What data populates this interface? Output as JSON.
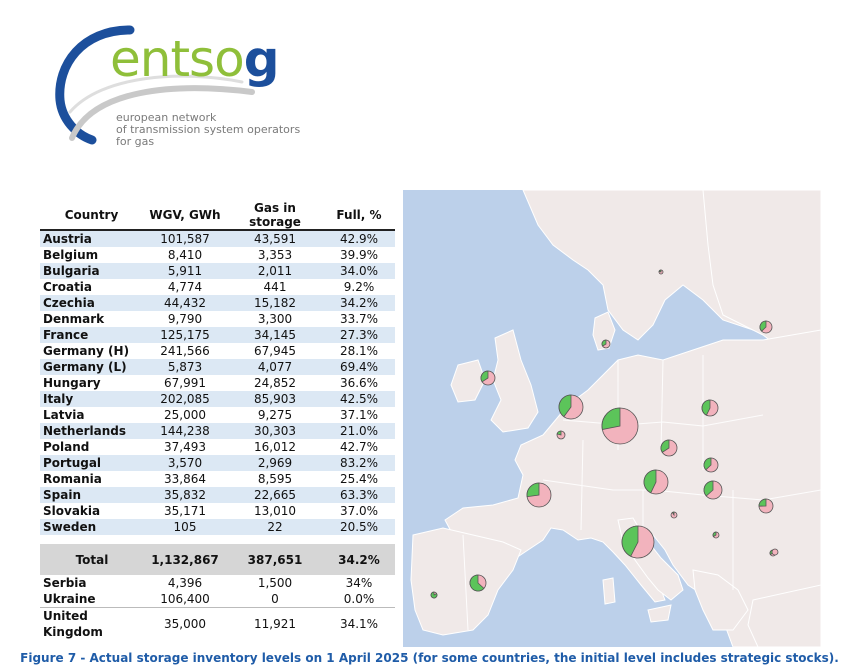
{
  "logo": {
    "brand": "entso",
    "brand_g": "g",
    "tagline": [
      "european network",
      "of transmission system operators",
      "for gas"
    ]
  },
  "table": {
    "headers": [
      "Country",
      "WGV, GWh",
      "Gas in storage",
      "Full, %"
    ],
    "rows": [
      [
        "Austria",
        "101,587",
        "43,591",
        "42.9%"
      ],
      [
        "Belgium",
        "8,410",
        "3,353",
        "39.9%"
      ],
      [
        "Bulgaria",
        "5,911",
        "2,011",
        "34.0%"
      ],
      [
        "Croatia",
        "4,774",
        "441",
        "9.2%"
      ],
      [
        "Czechia",
        "44,432",
        "15,182",
        "34.2%"
      ],
      [
        "Denmark",
        "9,790",
        "3,300",
        "33.7%"
      ],
      [
        "France",
        "125,175",
        "34,145",
        "27.3%"
      ],
      [
        "Germany (H)",
        "241,566",
        "67,945",
        "28.1%"
      ],
      [
        "Germany (L)",
        "5,873",
        "4,077",
        "69.4%"
      ],
      [
        "Hungary",
        "67,991",
        "24,852",
        "36.6%"
      ],
      [
        "Italy",
        "202,085",
        "85,903",
        "42.5%"
      ],
      [
        "Latvia",
        "25,000",
        "9,275",
        "37.1%"
      ],
      [
        "Netherlands",
        "144,238",
        "30,303",
        "21.0%"
      ],
      [
        "Poland",
        "37,493",
        "16,012",
        "42.7%"
      ],
      [
        "Portugal",
        "3,570",
        "2,969",
        "83.2%"
      ],
      [
        "Romania",
        "33,864",
        "8,595",
        "25.4%"
      ],
      [
        "Spain",
        "35,832",
        "22,665",
        "63.3%"
      ],
      [
        "Slovakia",
        "35,171",
        "13,010",
        "37.0%"
      ],
      [
        "Sweden",
        "105",
        "22",
        "20.5%"
      ]
    ],
    "total": [
      "Total",
      "1,132,867",
      "387,651",
      "34.2%"
    ],
    "extra_rows": [
      [
        "Serbia",
        "4,396",
        "1,500",
        "34%"
      ],
      [
        "Ukraine",
        "106,400",
        "0",
        "0.0%"
      ],
      [
        "United Kingdom",
        "35,000",
        "11,921",
        "34.1%"
      ]
    ]
  },
  "map": {
    "colors": {
      "sea": "#bcd0ea",
      "land": "#f0e9e8",
      "border": "#ffffff",
      "full": "#5cc45a",
      "empty": "#f2b3bd",
      "dot": "#c84a4a"
    },
    "pies": [
      {
        "country": "Austria",
        "full_pct": 42.9
      },
      {
        "country": "Belgium",
        "full_pct": 39.9
      },
      {
        "country": "Bulgaria",
        "full_pct": 34.0
      },
      {
        "country": "Croatia",
        "full_pct": 9.2
      },
      {
        "country": "Czechia",
        "full_pct": 34.2
      },
      {
        "country": "Denmark",
        "full_pct": 33.7
      },
      {
        "country": "France",
        "full_pct": 27.3
      },
      {
        "country": "Germany",
        "full_pct": 28.1
      },
      {
        "country": "Hungary",
        "full_pct": 36.6
      },
      {
        "country": "Italy",
        "full_pct": 42.5
      },
      {
        "country": "Latvia",
        "full_pct": 37.1
      },
      {
        "country": "Netherlands",
        "full_pct": 21.0
      },
      {
        "country": "Poland",
        "full_pct": 42.7
      },
      {
        "country": "Portugal",
        "full_pct": 83.2
      },
      {
        "country": "Romania",
        "full_pct": 25.4
      },
      {
        "country": "Spain",
        "full_pct": 63.3
      },
      {
        "country": "Slovakia",
        "full_pct": 37.0
      },
      {
        "country": "Serbia",
        "full_pct": 34.0
      },
      {
        "country": "United Kingdom",
        "full_pct": 34.1
      },
      {
        "country": "Sweden",
        "full_pct": 20.5
      },
      {
        "country": "Ukraine",
        "full_pct": 0.0
      }
    ]
  },
  "caption": "Figure 7 - Actual storage inventory levels on 1 April 2025 (for some countries, the initial level includes strategic stocks)."
}
